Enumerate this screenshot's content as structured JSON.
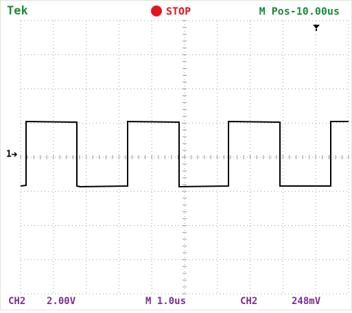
{
  "header": {
    "brand": "Tek",
    "status": "STOP",
    "position": "M Pos-10.00us"
  },
  "channel_marker": "1",
  "footer": {
    "channel": "CH2",
    "volts_per_div": "2.00V",
    "time_per_div": "M 1.0us",
    "trigger_channel": "CH2",
    "trigger_level": "248mV"
  }
}
